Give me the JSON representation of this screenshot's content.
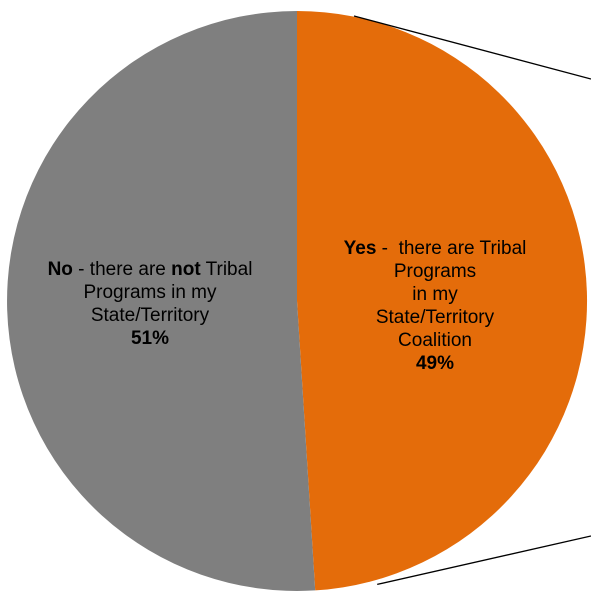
{
  "chart_data": {
    "type": "pie",
    "slices": [
      {
        "key": "yes",
        "value": 49,
        "pct_text": "49%",
        "color": "#E46C0A",
        "label_bold": "Yes",
        "label_rest": " -  there are Tribal",
        "label_lines": [
          "Programs",
          "in my",
          "State/Territory",
          "Coalition"
        ]
      },
      {
        "key": "no",
        "value": 51,
        "pct_text": "51%",
        "color": "#7F7F7F",
        "label_bold": "No",
        "label_mid": " - there are ",
        "label_bold2": "not",
        "label_rest": " Tribal",
        "label_lines": [
          "Programs in my",
          "State/Territory"
        ]
      }
    ],
    "connector_color": "#000000"
  }
}
